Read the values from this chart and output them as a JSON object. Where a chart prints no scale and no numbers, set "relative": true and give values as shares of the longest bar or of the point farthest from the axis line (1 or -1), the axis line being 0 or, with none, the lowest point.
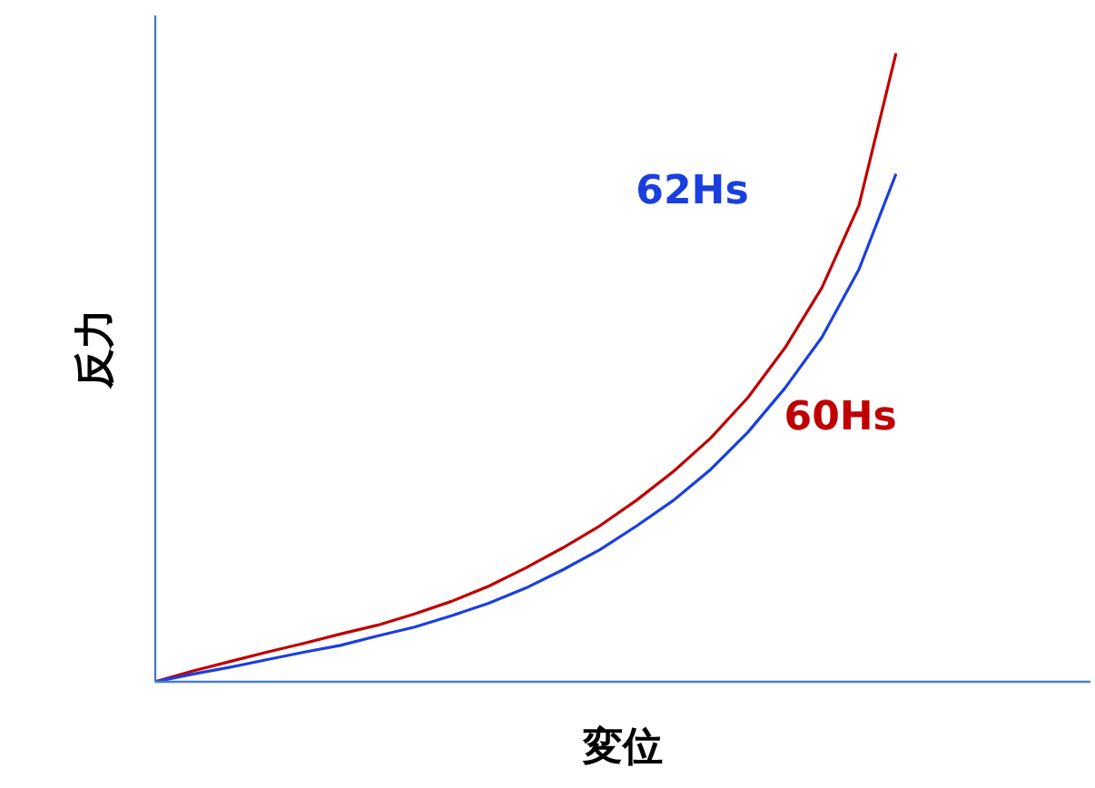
{
  "chart_data": {
    "type": "line",
    "relative": true,
    "xlabel": "変位",
    "ylabel": "反力",
    "categories": [
      null,
      null,
      null,
      null,
      null,
      null,
      null,
      null,
      null,
      null,
      null,
      null,
      null,
      null,
      null,
      null,
      null,
      null,
      null,
      null,
      null,
      null,
      null,
      null,
      null,
      null
    ],
    "series": [
      {
        "name": "60Hs",
        "color": "#c00000",
        "values": [
          0,
          0.017,
          0.032,
          0.047,
          0.061,
          0.076,
          0.09,
          0.108,
          0.128,
          0.152,
          0.181,
          0.213,
          0.248,
          0.289,
          0.335,
          0.388,
          0.452,
          0.531,
          0.627,
          0.758,
          1,
          null,
          null,
          null,
          null,
          null
        ]
      },
      {
        "name": "62Hs",
        "color": "#1a3fe0",
        "values": [
          0,
          0.012,
          0.023,
          0.035,
          0.047,
          0.058,
          0.073,
          0.087,
          0.105,
          0.125,
          0.149,
          0.178,
          0.21,
          0.248,
          0.289,
          0.338,
          0.397,
          0.467,
          0.548,
          0.656,
          0.808,
          null,
          null,
          null,
          null,
          null
        ]
      }
    ],
    "grid": false,
    "legend": false
  }
}
